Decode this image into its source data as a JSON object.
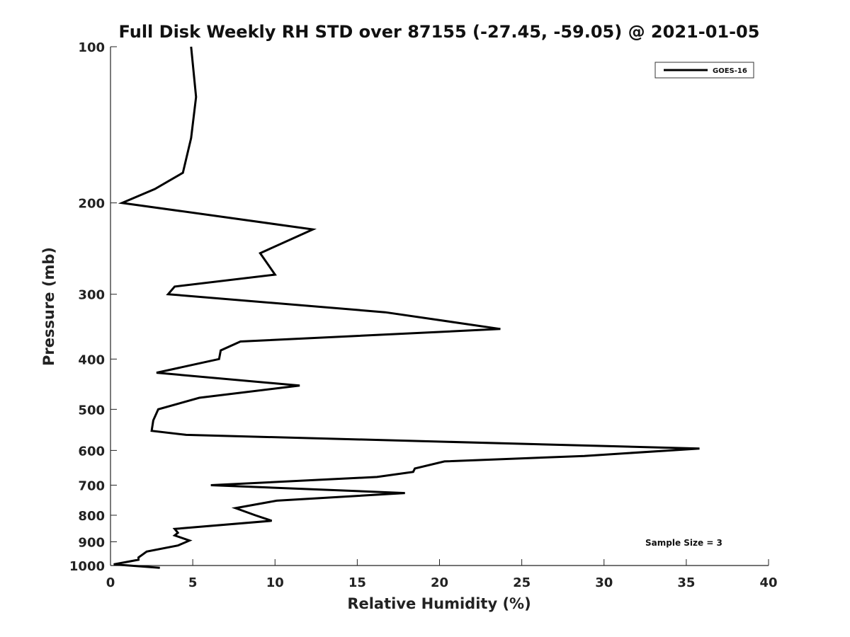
{
  "chart_data": {
    "type": "line",
    "title": "Full Disk Weekly RH STD over 87155 (-27.45, -59.05) @ 2021-01-05",
    "xlabel": "Relative Humidity (%)",
    "ylabel": "Pressure (mb)",
    "xlim": [
      0,
      40
    ],
    "ylim": [
      100,
      1000
    ],
    "y_scale": "log",
    "y_reversed": true,
    "x_ticks": [
      0,
      5,
      10,
      15,
      20,
      25,
      30,
      35,
      40
    ],
    "y_ticks": [
      100,
      200,
      300,
      400,
      500,
      600,
      700,
      800,
      900,
      1000
    ],
    "legend": {
      "position": "top-right",
      "entries": [
        "GOES-16"
      ]
    },
    "annotation": "Sample Size = 3",
    "series": [
      {
        "name": "GOES-16",
        "color": "#000000",
        "points": [
          [
            4.9,
            100
          ],
          [
            5.2,
            125
          ],
          [
            4.9,
            150
          ],
          [
            4.4,
            175
          ],
          [
            2.7,
            188
          ],
          [
            0.7,
            200
          ],
          [
            12.3,
            225
          ],
          [
            9.1,
            250
          ],
          [
            10.0,
            275
          ],
          [
            3.9,
            290
          ],
          [
            3.5,
            300
          ],
          [
            16.7,
            325
          ],
          [
            23.7,
            350
          ],
          [
            7.9,
            370
          ],
          [
            6.7,
            385
          ],
          [
            6.6,
            400
          ],
          [
            2.8,
            425
          ],
          [
            11.5,
            450
          ],
          [
            5.4,
            475
          ],
          [
            2.9,
            500
          ],
          [
            2.6,
            525
          ],
          [
            2.5,
            550
          ],
          [
            4.6,
            560
          ],
          [
            35.8,
            595
          ],
          [
            28.8,
            615
          ],
          [
            20.3,
            630
          ],
          [
            18.5,
            650
          ],
          [
            18.4,
            660
          ],
          [
            16.2,
            675
          ],
          [
            6.1,
            700
          ],
          [
            17.9,
            725
          ],
          [
            10.1,
            750
          ],
          [
            7.6,
            775
          ],
          [
            8.8,
            800
          ],
          [
            9.8,
            820
          ],
          [
            3.9,
            850
          ],
          [
            4.1,
            865
          ],
          [
            3.9,
            875
          ],
          [
            4.8,
            895
          ],
          [
            4.1,
            915
          ],
          [
            2.2,
            940
          ],
          [
            1.7,
            965
          ],
          [
            1.7,
            975
          ],
          [
            0.2,
            995
          ],
          [
            3.0,
            1010
          ]
        ]
      }
    ]
  }
}
